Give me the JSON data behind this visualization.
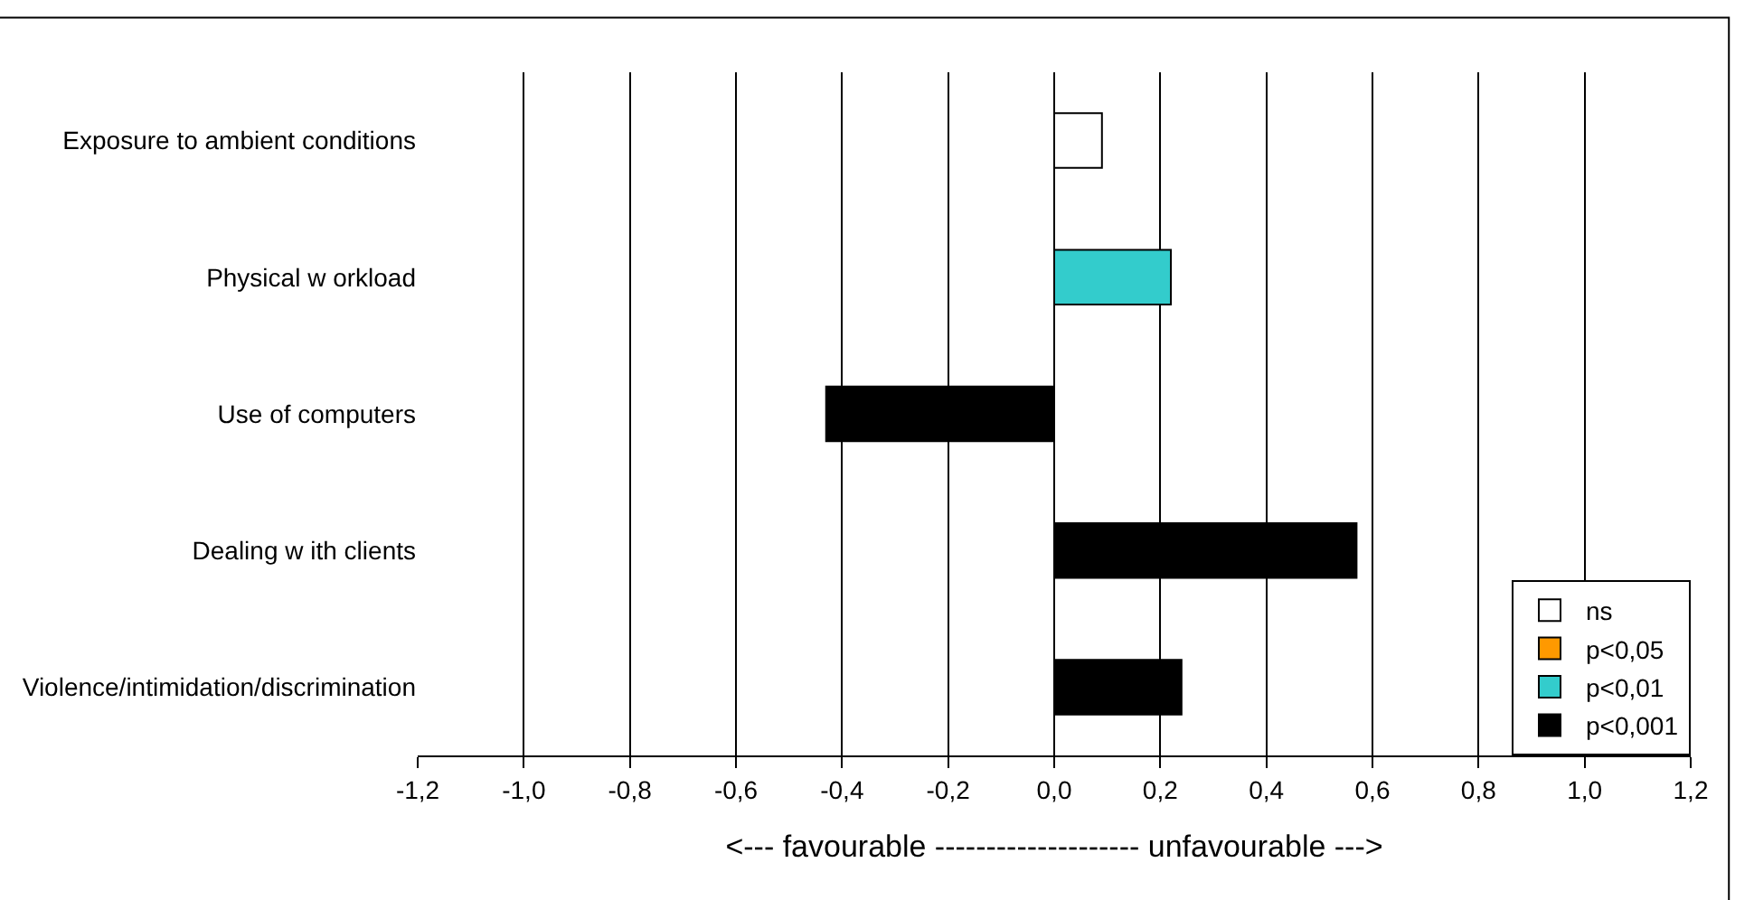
{
  "chart_data": {
    "type": "bar",
    "orientation": "horizontal",
    "stacked": true,
    "xlabel": "<--- favourable -------------------- unfavourable --->",
    "categories": [
      "Exposure to ambient conditions",
      "Physical w orkload",
      "Use of computers",
      "Dealing w ith clients",
      "Violence/intimidation/discrimination"
    ],
    "series": [
      {
        "name": "ns",
        "color": "#ffffff",
        "values": [
          0.09,
          null,
          null,
          null,
          null
        ]
      },
      {
        "name": "p<0,05",
        "color": "#ff9900",
        "values": [
          null,
          null,
          null,
          null,
          null
        ]
      },
      {
        "name": "p<0,01",
        "color": "#33cccc",
        "values": [
          null,
          0.22,
          null,
          null,
          null
        ]
      },
      {
        "name": "p<0,001",
        "color": "#000000",
        "values": [
          null,
          null,
          -0.43,
          0.57,
          0.24
        ]
      }
    ],
    "xlim": [
      -1.2,
      1.2
    ],
    "xticks": [
      {
        "value": -1.2,
        "label": "-1,2"
      },
      {
        "value": -1.0,
        "label": "-1,0"
      },
      {
        "value": -0.8,
        "label": "-0,8"
      },
      {
        "value": -0.6,
        "label": "-0,6"
      },
      {
        "value": -0.4,
        "label": "-0,4"
      },
      {
        "value": -0.2,
        "label": "-0,2"
      },
      {
        "value": 0,
        "label": "0,0"
      },
      {
        "value": 0.2,
        "label": "0,2"
      },
      {
        "value": 0.4,
        "label": "0,4"
      },
      {
        "value": 0.6,
        "label": "0,6"
      },
      {
        "value": 0.8,
        "label": "0,8"
      },
      {
        "value": 1.0,
        "label": "1,0"
      },
      {
        "value": 1.2,
        "label": "1,2"
      }
    ],
    "grid": "x",
    "legend": "bottom right"
  }
}
